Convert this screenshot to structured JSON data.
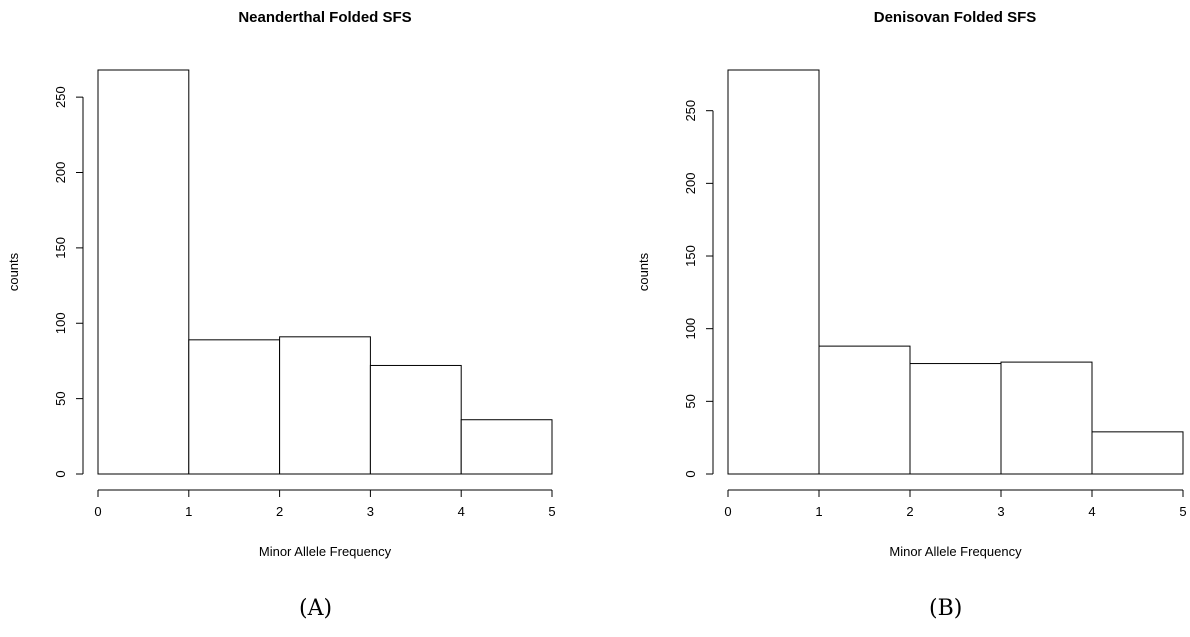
{
  "chart_data": [
    {
      "type": "bar",
      "title": "Neanderthal Folded SFS",
      "xlabel": "Minor Allele Frequency",
      "ylabel": "counts",
      "bin_edges": [
        0,
        1,
        2,
        3,
        4,
        5
      ],
      "values": [
        268,
        89,
        91,
        72,
        36
      ],
      "xlim": [
        0,
        5
      ],
      "ylim": [
        0,
        268
      ],
      "x_ticks": [
        "0",
        "1",
        "2",
        "3",
        "4",
        "5"
      ],
      "y_ticks": [
        "0",
        "50",
        "100",
        "150",
        "200",
        "250"
      ],
      "grid": false,
      "caption": "(A)"
    },
    {
      "type": "bar",
      "title": "Denisovan Folded SFS",
      "xlabel": "Minor Allele Frequency",
      "ylabel": "counts",
      "bin_edges": [
        0,
        1,
        2,
        3,
        4,
        5
      ],
      "values": [
        278,
        88,
        76,
        77,
        29
      ],
      "xlim": [
        0,
        5
      ],
      "ylim": [
        0,
        278
      ],
      "x_ticks": [
        "0",
        "1",
        "2",
        "3",
        "4",
        "5"
      ],
      "y_ticks": [
        "0",
        "50",
        "100",
        "150",
        "200",
        "250"
      ],
      "grid": false,
      "caption": "(B)"
    }
  ]
}
